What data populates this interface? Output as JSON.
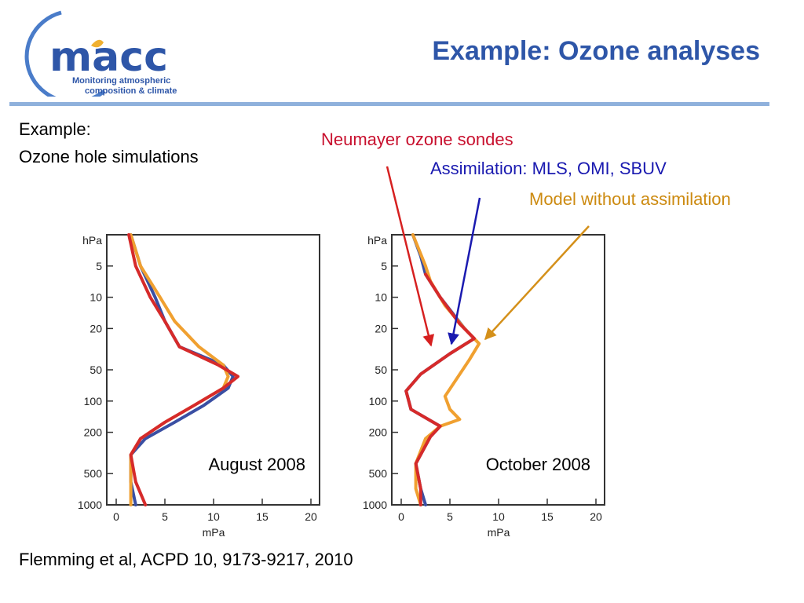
{
  "logo": {
    "name": "macc",
    "tagline_1": "Monitoring atmospheric",
    "tagline_2": "composition & climate"
  },
  "title": "Example: Ozone analyses",
  "intro": {
    "line1": "Example:",
    "line2": "Ozone hole simulations"
  },
  "legend": {
    "sondes": "Neumayer ozone sondes",
    "assim": "Assimilation: MLS, OMI, SBUV",
    "model": "Model without assimilation"
  },
  "colors": {
    "sondes": "#d62a2a",
    "assim": "#3a4fa3",
    "model": "#f0a030",
    "title": "#2e56a8",
    "legend_assim": "#1a1ab0",
    "legend_model": "#cc8a10"
  },
  "citation": "Flemming et al, ACPD 10, 9173-9217, 2010",
  "chart_data": [
    {
      "type": "line",
      "title": "August 2008",
      "xlabel": "mPa",
      "ylabel": "hPa",
      "xlim": [
        0,
        20
      ],
      "ylim": [
        1000,
        2.5
      ],
      "yscale": "log",
      "xticks": [
        0,
        5,
        10,
        15,
        20
      ],
      "yticks": [
        5,
        10,
        20,
        50,
        100,
        200,
        500,
        1000
      ],
      "series": [
        {
          "key": "assim",
          "points": [
            [
              1.5,
              2.5
            ],
            [
              2.5,
              5
            ],
            [
              4,
              10
            ],
            [
              5,
              17
            ],
            [
              6.5,
              30
            ],
            [
              11,
              45
            ],
            [
              12,
              58
            ],
            [
              11.5,
              75
            ],
            [
              9,
              110
            ],
            [
              6,
              160
            ],
            [
              3,
              230
            ],
            [
              1.5,
              330
            ],
            [
              1.5,
              600
            ],
            [
              2,
              1000
            ]
          ]
        },
        {
          "key": "model",
          "points": [
            [
              1.5,
              2.5
            ],
            [
              2.5,
              5
            ],
            [
              4.5,
              10
            ],
            [
              6,
              17
            ],
            [
              8.5,
              30
            ],
            [
              11,
              45
            ],
            [
              11.5,
              58
            ],
            [
              11,
              75
            ],
            [
              8,
              110
            ],
            [
              5,
              160
            ],
            [
              2.5,
              230
            ],
            [
              1.5,
              330
            ],
            [
              1.5,
              600
            ],
            [
              1.5,
              1000
            ]
          ]
        },
        {
          "key": "sondes",
          "points": [
            [
              1.3,
              2.5
            ],
            [
              2,
              5
            ],
            [
              3.5,
              10
            ],
            [
              5,
              17
            ],
            [
              6.5,
              30
            ],
            [
              10.5,
              45
            ],
            [
              12.5,
              58
            ],
            [
              11,
              75
            ],
            [
              8,
              110
            ],
            [
              5,
              160
            ],
            [
              2.5,
              230
            ],
            [
              1.5,
              330
            ],
            [
              2,
              600
            ],
            [
              3,
              1000
            ]
          ]
        }
      ]
    },
    {
      "type": "line",
      "title": "October 2008",
      "xlabel": "mPa",
      "ylabel": "hPa",
      "xlim": [
        0,
        20
      ],
      "ylim": [
        1000,
        2.5
      ],
      "yscale": "log",
      "xticks": [
        0,
        5,
        10,
        15,
        20
      ],
      "yticks": [
        5,
        10,
        20,
        50,
        100,
        200,
        500,
        1000
      ],
      "series": [
        {
          "key": "assim",
          "points": [
            [
              1.2,
              2.5
            ],
            [
              2,
              4
            ],
            [
              2.5,
              6
            ],
            [
              4,
              10
            ],
            [
              6.5,
              20
            ],
            [
              7.5,
              25
            ],
            [
              5,
              35
            ],
            [
              2,
              55
            ],
            [
              0.5,
              80
            ],
            [
              1,
              120
            ],
            [
              4,
              175
            ],
            [
              3,
              220
            ],
            [
              1.5,
              400
            ],
            [
              2,
              700
            ],
            [
              2.5,
              1000
            ]
          ]
        },
        {
          "key": "model",
          "points": [
            [
              1.2,
              2.5
            ],
            [
              2.5,
              5
            ],
            [
              3,
              7
            ],
            [
              4.5,
              12
            ],
            [
              6.5,
              20
            ],
            [
              8,
              28
            ],
            [
              7,
              40
            ],
            [
              4.5,
              90
            ],
            [
              5,
              120
            ],
            [
              6,
              150
            ],
            [
              4,
              175
            ],
            [
              2.5,
              230
            ],
            [
              1.5,
              400
            ],
            [
              1.5,
              700
            ],
            [
              2,
              1000
            ]
          ]
        },
        {
          "key": "sondes",
          "points": [
            [
              2.5,
              6
            ],
            [
              4,
              10
            ],
            [
              6,
              18
            ],
            [
              7.5,
              25
            ],
            [
              5,
              35
            ],
            [
              2,
              55
            ],
            [
              0.5,
              80
            ],
            [
              1,
              120
            ],
            [
              4,
              175
            ],
            [
              3,
              220
            ],
            [
              1.5,
              400
            ],
            [
              2,
              700
            ],
            [
              2,
              1000
            ]
          ]
        }
      ]
    }
  ]
}
